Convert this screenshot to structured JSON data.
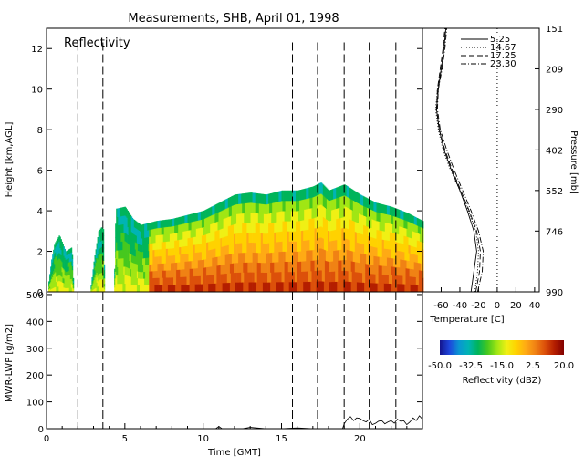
{
  "title": "Measurements, SHB, April 01, 1998",
  "chart_data": [
    {
      "type": "heatmap",
      "panel": "reflectivity",
      "label": "Reflectivity",
      "ylabel": "Height [km,AGL]",
      "xlim": [
        0,
        24
      ],
      "ylim": [
        0,
        13
      ],
      "yticks": [
        0,
        2,
        4,
        6,
        8,
        10,
        12
      ],
      "echo_top_km": [
        {
          "t": 0.1,
          "top": 0.4
        },
        {
          "t": 0.3,
          "top": 1.6
        },
        {
          "t": 0.5,
          "top": 2.4
        },
        {
          "t": 0.8,
          "top": 2.8
        },
        {
          "t": 1.2,
          "top": 2.0
        },
        {
          "t": 1.6,
          "top": 2.2
        },
        {
          "t": 1.7,
          "top": 0.3
        },
        {
          "t": 2.8,
          "top": 0.2
        },
        {
          "t": 3.0,
          "top": 1.5
        },
        {
          "t": 3.3,
          "top": 3.0
        },
        {
          "t": 3.5,
          "top": 3.2
        },
        {
          "t": 3.6,
          "top": 3.1
        },
        {
          "t": 3.7,
          "top": 0.2
        },
        {
          "t": 4.3,
          "top": 0.4
        },
        {
          "t": 4.4,
          "top": 4.1
        },
        {
          "t": 5.0,
          "top": 4.2
        },
        {
          "t": 5.5,
          "top": 3.6
        },
        {
          "t": 6.0,
          "top": 3.3
        },
        {
          "t": 7.0,
          "top": 3.5
        },
        {
          "t": 8.0,
          "top": 3.6
        },
        {
          "t": 9.0,
          "top": 3.8
        },
        {
          "t": 10.0,
          "top": 4.0
        },
        {
          "t": 11.0,
          "top": 4.4
        },
        {
          "t": 12.0,
          "top": 4.8
        },
        {
          "t": 13.0,
          "top": 4.9
        },
        {
          "t": 14.0,
          "top": 4.8
        },
        {
          "t": 15.0,
          "top": 5.0
        },
        {
          "t": 16.0,
          "top": 5.0
        },
        {
          "t": 17.0,
          "top": 5.2
        },
        {
          "t": 17.5,
          "top": 5.4
        },
        {
          "t": 18.0,
          "top": 5.0
        },
        {
          "t": 19.0,
          "top": 5.3
        },
        {
          "t": 20.0,
          "top": 4.8
        },
        {
          "t": 21.0,
          "top": 4.4
        },
        {
          "t": 22.0,
          "top": 4.2
        },
        {
          "t": 23.0,
          "top": 3.9
        },
        {
          "t": 24.0,
          "top": 3.5
        }
      ],
      "dashed_times": [
        2.0,
        3.6,
        15.7,
        17.3,
        19.0,
        20.6,
        22.3
      ]
    },
    {
      "type": "line",
      "panel": "sounding",
      "xlabel": "Temperature [C]",
      "ylabel": "Pressure [mb]",
      "xticks": [
        -60,
        -40,
        -20,
        0,
        20,
        40
      ],
      "xtick_labels": [
        "-60",
        "-40",
        "-20",
        "0",
        "20",
        "40"
      ],
      "xlim": [
        -80,
        45
      ],
      "y_tick_labels": [
        "151",
        "209",
        "290",
        "402",
        "552",
        "746",
        "990"
      ],
      "y_height_km": [
        13,
        11,
        9,
        7,
        5,
        3,
        0
      ],
      "ylim_km": [
        0,
        13
      ],
      "legend": [
        "5.25",
        "14.67",
        "17.25",
        "23.30"
      ],
      "series": [
        {
          "name": "5.25",
          "points": [
            [
              -28,
              0
            ],
            [
              -25,
              1
            ],
            [
              -22,
              2
            ],
            [
              -25,
              3
            ],
            [
              -32,
              4
            ],
            [
              -40,
              5
            ],
            [
              -49,
              6
            ],
            [
              -57,
              7
            ],
            [
              -62,
              8
            ],
            [
              -65,
              9
            ],
            [
              -63,
              10
            ],
            [
              -60,
              11
            ],
            [
              -57,
              12
            ],
            [
              -55,
              13
            ]
          ]
        },
        {
          "name": "14.67",
          "points": [
            [
              -24,
              0
            ],
            [
              -21,
              1
            ],
            [
              -20,
              2
            ],
            [
              -23,
              3
            ],
            [
              -31,
              4
            ],
            [
              -40,
              5
            ],
            [
              -50,
              6
            ],
            [
              -58,
              7
            ],
            [
              -63,
              8
            ],
            [
              -66,
              9
            ],
            [
              -64,
              10
            ],
            [
              -60,
              11
            ],
            [
              -57,
              12
            ],
            [
              -55,
              13
            ]
          ]
        },
        {
          "name": "17.25",
          "points": [
            [
              -23,
              0
            ],
            [
              -19,
              1
            ],
            [
              -18,
              2
            ],
            [
              -22,
              3
            ],
            [
              -30,
              4
            ],
            [
              -39,
              5
            ],
            [
              -48,
              6
            ],
            [
              -56,
              7
            ],
            [
              -62,
              8
            ],
            [
              -65,
              9
            ],
            [
              -64,
              10
            ],
            [
              -61,
              11
            ],
            [
              -58,
              12
            ],
            [
              -56,
              13
            ]
          ]
        },
        {
          "name": "23.30",
          "points": [
            [
              -21,
              0
            ],
            [
              -16,
              1
            ],
            [
              -15,
              2
            ],
            [
              -20,
              3
            ],
            [
              -28,
              4
            ],
            [
              -37,
              5
            ],
            [
              -46,
              6
            ],
            [
              -54,
              7
            ],
            [
              -61,
              8
            ],
            [
              -64,
              9
            ],
            [
              -63,
              10
            ],
            [
              -59,
              11
            ],
            [
              -56,
              12
            ],
            [
              -54,
              13
            ]
          ]
        }
      ]
    },
    {
      "type": "line",
      "panel": "lwp",
      "ylabel": "MWR-LWP [g/m2]",
      "xlabel": "Time [GMT]",
      "xlim": [
        0,
        24
      ],
      "ylim": [
        0,
        510
      ],
      "xticks": [
        0,
        5,
        10,
        15,
        20
      ],
      "yticks": [
        0,
        100,
        200,
        300,
        400,
        500
      ],
      "x": [
        0,
        10.8,
        11.0,
        11.2,
        12.5,
        13.0,
        14.0,
        15.0,
        16.0,
        17.0,
        18.0,
        18.9,
        19.0,
        19.2,
        19.4,
        19.6,
        19.8,
        20.0,
        20.2,
        20.4,
        20.6,
        20.8,
        21.0,
        21.2,
        21.4,
        21.6,
        21.8,
        22.0,
        22.2,
        22.4,
        22.6,
        22.8,
        23.0,
        23.2,
        23.4,
        23.6,
        23.8,
        24.0
      ],
      "values": [
        0,
        0,
        8,
        0,
        0,
        5,
        0,
        0,
        3,
        0,
        0,
        0,
        18,
        35,
        45,
        30,
        40,
        38,
        30,
        25,
        35,
        15,
        20,
        28,
        30,
        18,
        25,
        30,
        20,
        35,
        28,
        30,
        15,
        25,
        40,
        30,
        48,
        35
      ],
      "dashed_times": [
        2.0,
        3.6,
        15.7,
        17.3,
        19.0,
        20.6,
        22.3
      ]
    },
    {
      "type": "heatmap",
      "panel": "colorbar",
      "xlabel": "Reflectivity (dBZ)",
      "range": [
        -50,
        20
      ],
      "tick_labels": [
        "-50.0",
        "-32.5",
        "-15.0",
        "2.5",
        "20.0"
      ],
      "colors": [
        "#14148c",
        "#1e46dc",
        "#0a96d2",
        "#00b4b4",
        "#00b45a",
        "#46c81e",
        "#a0e614",
        "#f0f014",
        "#ffd200",
        "#ffaa14",
        "#f08214",
        "#dc500a",
        "#b41e00",
        "#820000"
      ]
    }
  ]
}
